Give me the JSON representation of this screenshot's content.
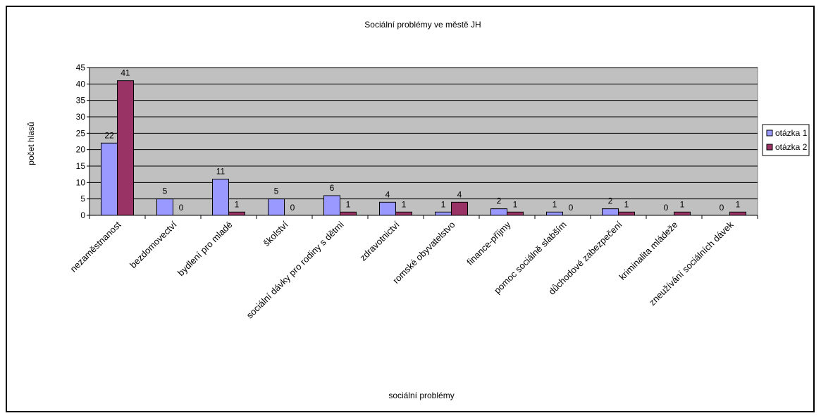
{
  "chart_data": {
    "type": "bar",
    "title": "Sociální problémy ve městě JH",
    "xlabel": "sociální problémy",
    "ylabel": "počet hlasů",
    "ylim": [
      0,
      45
    ],
    "yticks": [
      "0",
      "5",
      "10",
      "15",
      "20",
      "25",
      "30",
      "35",
      "40",
      "45"
    ],
    "grid": true,
    "legend_position": "right",
    "categories": [
      "nezaměstnanost",
      "bezdomovectví",
      "bydlení pro mladé",
      "školství",
      "sociální dávky pro rodiny s dětmi",
      "zdravotnictví",
      "romské obyvatelstvo",
      "finance-příjmy",
      "pomoc sociálně slabším",
      "důchodové zabezpečení",
      "kriminalita mládeže",
      "zneužívání sociálních dávek"
    ],
    "series": [
      {
        "name": "otázka 1",
        "color": "#9999ff",
        "values": [
          22,
          5,
          11,
          5,
          6,
          4,
          1,
          2,
          1,
          2,
          0,
          0
        ]
      },
      {
        "name": "otázka 2",
        "color": "#993366",
        "values": [
          41,
          0,
          1,
          0,
          1,
          1,
          4,
          1,
          0,
          1,
          1,
          1
        ]
      }
    ],
    "plot_background": "#c0c0c0"
  }
}
